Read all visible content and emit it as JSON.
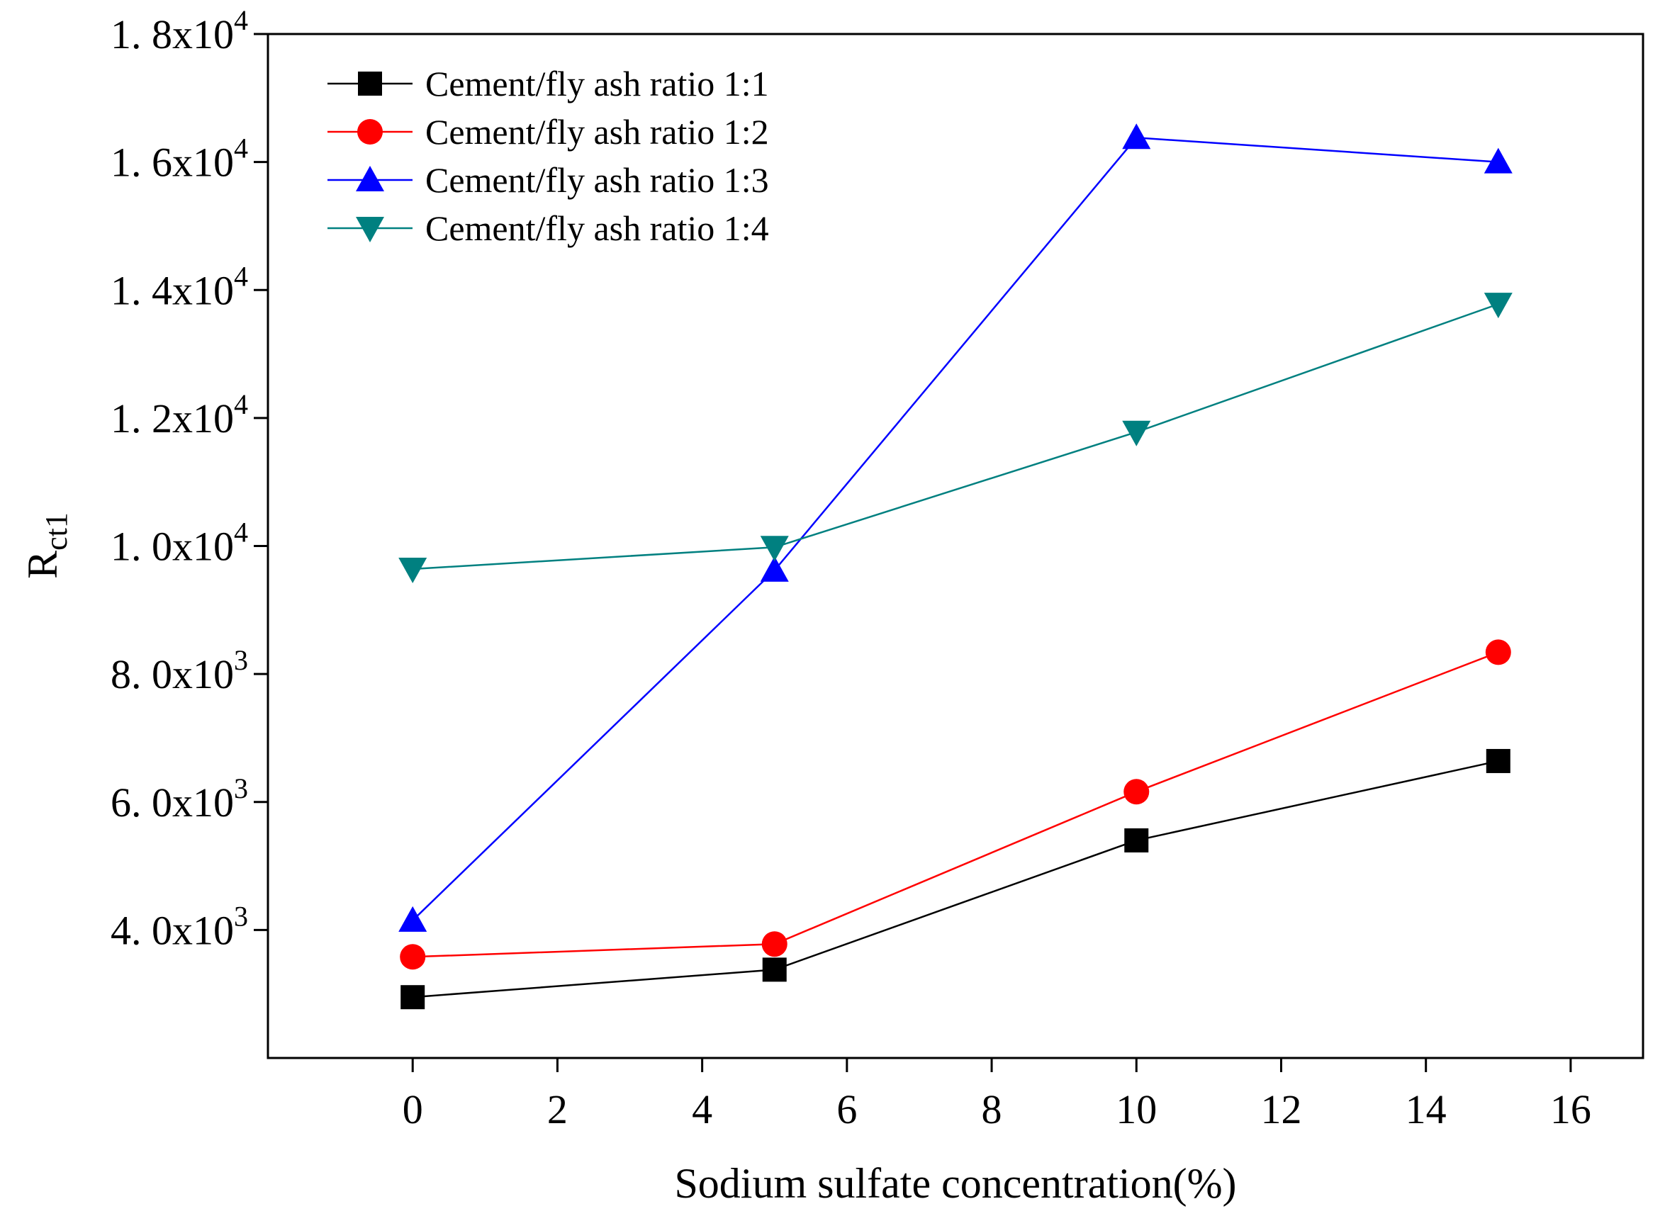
{
  "chart_data": {
    "type": "line",
    "title": "",
    "xlabel": "Sodium sulfate concentration(%)",
    "ylabel": {
      "main": "R",
      "subscript": "ct1"
    },
    "xlim": [
      -2,
      17
    ],
    "ylim": [
      2000,
      18000
    ],
    "x_ticks": [
      0,
      2,
      4,
      6,
      8,
      10,
      12,
      14,
      16
    ],
    "y_ticks": [
      {
        "value": 4000,
        "mantissa": "4. 0x10",
        "exp": "3"
      },
      {
        "value": 6000,
        "mantissa": "6. 0x10",
        "exp": "3"
      },
      {
        "value": 8000,
        "mantissa": "8. 0x10",
        "exp": "3"
      },
      {
        "value": 10000,
        "mantissa": "1. 0x10",
        "exp": "4"
      },
      {
        "value": 12000,
        "mantissa": "1. 2x10",
        "exp": "4"
      },
      {
        "value": 14000,
        "mantissa": "1. 4x10",
        "exp": "4"
      },
      {
        "value": 16000,
        "mantissa": "1. 6x10",
        "exp": "4"
      },
      {
        "value": 18000,
        "mantissa": "1. 8x10",
        "exp": "4"
      }
    ],
    "x": [
      0,
      5,
      10,
      15
    ],
    "legend_position": "top-left",
    "series": [
      {
        "name": "Cement/fly ash ratio 1:1",
        "marker": "square",
        "color": "#000000",
        "values": [
          2950,
          3380,
          5400,
          6640
        ]
      },
      {
        "name": "Cement/fly ash ratio 1:2",
        "marker": "circle",
        "color": "#ff0000",
        "values": [
          3580,
          3780,
          6160,
          8340
        ]
      },
      {
        "name": "Cement/fly ash ratio 1:3",
        "marker": "triangle-up",
        "color": "#0000ff",
        "values": [
          4150,
          9620,
          16380,
          16000
        ]
      },
      {
        "name": "Cement/fly ash ratio 1:4",
        "marker": "triangle-down",
        "color": "#008080",
        "values": [
          9640,
          9980,
          11780,
          13780
        ]
      }
    ]
  }
}
